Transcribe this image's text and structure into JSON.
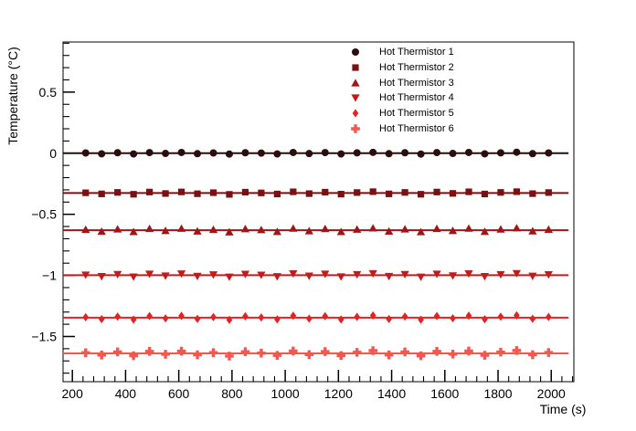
{
  "background": "#ffffff",
  "axis_color": "#000000",
  "chart_data": {
    "type": "scatter",
    "title": "",
    "xlabel": "Time (s)",
    "ylabel": "Temperature (°C)",
    "xlim": [
      165,
      2085
    ],
    "ylim": [
      -1.87,
      0.91
    ],
    "x_ticks": [
      200,
      400,
      600,
      800,
      1000,
      1200,
      1400,
      1600,
      1800,
      2000
    ],
    "x_minor_step": 40,
    "y_ticks": [
      0.5,
      0,
      -0.5,
      -1,
      -1.5
    ],
    "y_tick_labels": [
      "0.5",
      "0",
      "−0.5",
      "−1",
      "−1.5"
    ],
    "y_minor_step": 0.1,
    "grid": false,
    "legend_position": "top-right-inside",
    "fit_x_range": [
      165,
      2065
    ],
    "x": [
      250,
      310,
      370,
      430,
      490,
      550,
      610,
      670,
      730,
      790,
      850,
      910,
      970,
      1030,
      1090,
      1150,
      1210,
      1270,
      1330,
      1390,
      1450,
      1510,
      1570,
      1630,
      1690,
      1750,
      1810,
      1870,
      1930,
      1990
    ],
    "series": [
      {
        "name": "Hot Thermistor 1",
        "marker": "circle",
        "color": "#2b0d0d",
        "fit_y": 0.0,
        "y": [
          0.002,
          -0.005,
          0.004,
          -0.006,
          0.005,
          -0.002,
          0.006,
          -0.004,
          0.002,
          -0.007,
          0.004,
          0.001,
          -0.006,
          0.006,
          -0.003,
          0.005,
          -0.006,
          0.003,
          0.007,
          -0.004,
          0.004,
          -0.007,
          0.005,
          -0.002,
          0.006,
          -0.005,
          0.003,
          0.008,
          -0.004,
          0.002
        ]
      },
      {
        "name": "Hot Thermistor 2",
        "marker": "square",
        "color": "#7c1010",
        "fit_y": -0.326,
        "y": [
          -0.324,
          -0.333,
          -0.321,
          -0.336,
          -0.318,
          -0.33,
          -0.317,
          -0.332,
          -0.323,
          -0.337,
          -0.319,
          -0.325,
          -0.334,
          -0.316,
          -0.331,
          -0.319,
          -0.335,
          -0.322,
          -0.315,
          -0.333,
          -0.321,
          -0.336,
          -0.318,
          -0.329,
          -0.316,
          -0.334,
          -0.321,
          -0.315,
          -0.331,
          -0.322
        ]
      },
      {
        "name": "Hot Thermistor 3",
        "marker": "triangle-up",
        "color": "#a31414",
        "fit_y": -0.63,
        "y": [
          -0.626,
          -0.641,
          -0.622,
          -0.644,
          -0.618,
          -0.635,
          -0.617,
          -0.639,
          -0.626,
          -0.646,
          -0.62,
          -0.628,
          -0.643,
          -0.616,
          -0.637,
          -0.619,
          -0.644,
          -0.624,
          -0.614,
          -0.64,
          -0.622,
          -0.645,
          -0.618,
          -0.635,
          -0.616,
          -0.642,
          -0.623,
          -0.613,
          -0.638,
          -0.625
        ]
      },
      {
        "name": "Hot Thermistor 4",
        "marker": "triangle-down",
        "color": "#c51a1a",
        "fit_y": -0.998,
        "y": [
          -0.995,
          -1.008,
          -0.991,
          -1.011,
          -0.988,
          -1.003,
          -0.986,
          -1.006,
          -0.994,
          -1.012,
          -0.989,
          -0.996,
          -1.009,
          -0.985,
          -1.004,
          -0.988,
          -1.01,
          -0.992,
          -0.984,
          -1.007,
          -0.991,
          -1.012,
          -0.988,
          -1.002,
          -0.985,
          -1.008,
          -0.992,
          -0.983,
          -1.005,
          -0.993
        ]
      },
      {
        "name": "Hot Thermistor 5",
        "marker": "diamond",
        "color": "#e32222",
        "fit_y": -1.346,
        "y": [
          -1.342,
          -1.358,
          -1.337,
          -1.362,
          -1.333,
          -1.352,
          -1.331,
          -1.356,
          -1.341,
          -1.364,
          -1.335,
          -1.344,
          -1.36,
          -1.33,
          -1.354,
          -1.334,
          -1.361,
          -1.339,
          -1.328,
          -1.357,
          -1.337,
          -1.363,
          -1.333,
          -1.351,
          -1.33,
          -1.359,
          -1.338,
          -1.327,
          -1.355,
          -1.34
        ]
      },
      {
        "name": "Hot Thermistor 6",
        "marker": "plus",
        "color": "#f4574f",
        "fit_y": -1.638,
        "y": [
          -1.633,
          -1.652,
          -1.627,
          -1.657,
          -1.622,
          -1.645,
          -1.62,
          -1.65,
          -1.632,
          -1.66,
          -1.625,
          -1.636,
          -1.655,
          -1.619,
          -1.648,
          -1.624,
          -1.656,
          -1.63,
          -1.616,
          -1.651,
          -1.627,
          -1.658,
          -1.622,
          -1.644,
          -1.619,
          -1.654,
          -1.628,
          -1.615,
          -1.649,
          -1.631
        ]
      }
    ]
  }
}
